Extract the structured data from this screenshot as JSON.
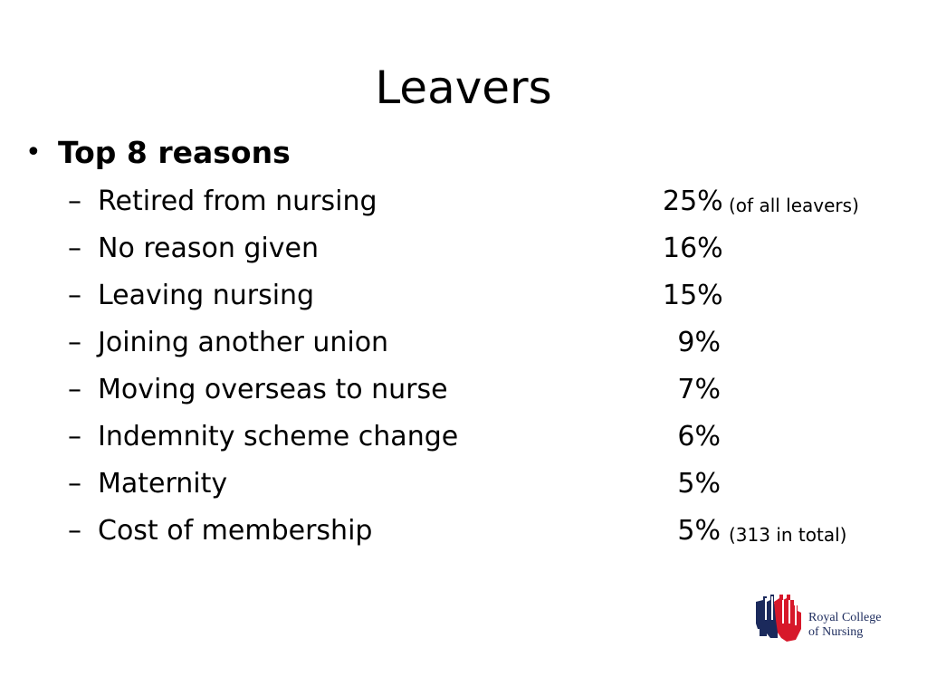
{
  "slide": {
    "title": "Leavers",
    "bullet": {
      "symbol": "•",
      "heading": "Top 8 reasons"
    },
    "dash": "–",
    "reasons": [
      {
        "label": "Retired from nursing",
        "percent": "25%",
        "note": "(of all leavers)"
      },
      {
        "label": "No reason given",
        "percent": "16%",
        "note": ""
      },
      {
        "label": "Leaving nursing",
        "percent": "15%",
        "note": ""
      },
      {
        "label": "Joining another union",
        "percent": "9%",
        "note": ""
      },
      {
        "label": "Moving overseas to nurse",
        "percent": "7%",
        "note": ""
      },
      {
        "label": "Indemnity scheme change",
        "percent": "6%",
        "note": ""
      },
      {
        "label": "Maternity",
        "percent": "5%",
        "note": ""
      },
      {
        "label": "Cost of membership",
        "percent": "5%",
        "note": "(313 in total)"
      }
    ]
  },
  "logo": {
    "line1": "Royal College",
    "line2": "of Nursing",
    "icon": "rcn-hands-logo-icon",
    "colors": {
      "navy": "#1b2a5c",
      "red": "#d7182a"
    }
  }
}
